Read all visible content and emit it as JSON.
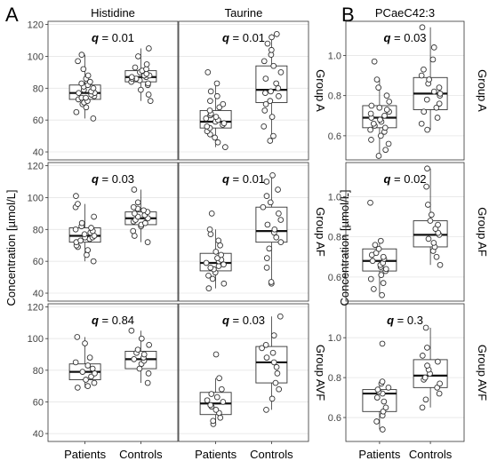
{
  "panel_labels": {
    "a": "A",
    "b": "B"
  },
  "y_axis_label": "Concentration  [µmol/L]",
  "x_categories": [
    "Patients",
    "Controls"
  ],
  "chart_data": [
    {
      "type": "box",
      "title": "Histidine",
      "ylim": [
        35,
        122
      ],
      "yticks": [
        40,
        60,
        80,
        100,
        120
      ],
      "facets": [
        {
          "group": "Group A",
          "q_label": "q",
          "q_value": "= 0.01",
          "boxes": [
            {
              "category": "Patients",
              "whisker_low": 61,
              "q1": 73,
              "median": 77,
              "q3": 82,
              "whisker_high": 101,
              "points": [
                61,
                65,
                68,
                70,
                71,
                72,
                73,
                74,
                74,
                75,
                76,
                77,
                77,
                78,
                79,
                80,
                81,
                82,
                83,
                84,
                86,
                88,
                92,
                97,
                101
              ]
            },
            {
              "category": "Controls",
              "whisker_low": 72,
              "q1": 84,
              "median": 87,
              "q3": 91,
              "whisker_high": 105,
              "points": [
                72,
                76,
                79,
                82,
                83,
                84,
                85,
                86,
                86,
                87,
                87,
                88,
                88,
                89,
                90,
                91,
                92,
                93,
                95,
                100,
                105
              ]
            }
          ]
        },
        {
          "group": "Group AF",
          "q_label": "q",
          "q_value": "= 0.03",
          "boxes": [
            {
              "category": "Patients",
              "whisker_low": 60,
              "q1": 72,
              "median": 76,
              "q3": 81,
              "whisker_high": 96,
              "points": [
                60,
                64,
                67,
                69,
                70,
                72,
                73,
                74,
                75,
                75,
                76,
                77,
                78,
                79,
                80,
                81,
                82,
                84,
                88,
                94,
                96,
                101
              ]
            },
            {
              "category": "Controls",
              "whisker_low": 72,
              "q1": 83,
              "median": 87,
              "q3": 91,
              "whisker_high": 105,
              "points": [
                72,
                76,
                79,
                82,
                83,
                84,
                85,
                86,
                87,
                87,
                88,
                89,
                90,
                91,
                92,
                93,
                94,
                97,
                105
              ]
            }
          ]
        },
        {
          "group": "Group AVF",
          "q_label": "q",
          "q_value": "= 0.84",
          "boxes": [
            {
              "category": "Patients",
              "whisker_low": 69,
              "q1": 74,
              "median": 79,
              "q3": 84,
              "whisker_high": 101,
              "points": [
                69,
                70,
                72,
                74,
                76,
                78,
                79,
                81,
                83,
                85,
                88,
                97,
                101
              ]
            },
            {
              "category": "Controls",
              "whisker_low": 72,
              "q1": 81,
              "median": 87,
              "q3": 92,
              "whisker_high": 105,
              "points": [
                72,
                78,
                81,
                84,
                86,
                87,
                88,
                90,
                91,
                93,
                96,
                100,
                105
              ]
            }
          ]
        }
      ]
    },
    {
      "type": "box",
      "title": "Taurine",
      "ylim": [
        35,
        122
      ],
      "yticks": [
        40,
        60,
        80,
        100,
        120
      ],
      "facets": [
        {
          "group": "Group A",
          "q_label": "q",
          "q_value": "= 0.01",
          "boxes": [
            {
              "category": "Patients",
              "whisker_low": 43,
              "q1": 55,
              "median": 59,
              "q3": 66,
              "whisker_high": 83,
              "points": [
                43,
                46,
                49,
                51,
                53,
                55,
                56,
                57,
                58,
                59,
                60,
                61,
                62,
                63,
                64,
                66,
                68,
                70,
                72,
                75,
                78,
                83,
                90
              ]
            },
            {
              "category": "Controls",
              "whisker_low": 47,
              "q1": 71,
              "median": 79,
              "q3": 94,
              "whisker_high": 114,
              "points": [
                47,
                50,
                56,
                62,
                66,
                70,
                72,
                75,
                77,
                78,
                80,
                83,
                86,
                90,
                94,
                97,
                101,
                104,
                108,
                112,
                114
              ]
            }
          ]
        },
        {
          "group": "Group AF",
          "q_label": "q",
          "q_value": "= 0.01",
          "boxes": [
            {
              "category": "Patients",
              "whisker_low": 43,
              "q1": 54,
              "median": 59,
              "q3": 65,
              "whisker_high": 80,
              "points": [
                43,
                46,
                49,
                51,
                53,
                55,
                56,
                57,
                58,
                59,
                60,
                61,
                62,
                64,
                66,
                70,
                73,
                77,
                80,
                90
              ]
            },
            {
              "category": "Controls",
              "whisker_low": 46,
              "q1": 72,
              "median": 79,
              "q3": 94,
              "whisker_high": 114,
              "points": [
                46,
                47,
                56,
                62,
                68,
                72,
                75,
                78,
                80,
                83,
                86,
                90,
                94,
                97,
                101,
                105,
                110,
                114
              ]
            }
          ]
        },
        {
          "group": "Group AVF",
          "q_label": "q",
          "q_value": "= 0.03",
          "boxes": [
            {
              "category": "Patients",
              "whisker_low": 46,
              "q1": 52,
              "median": 59,
              "q3": 66,
              "whisker_high": 75,
              "points": [
                46,
                48,
                50,
                53,
                55,
                57,
                58,
                60,
                61,
                63,
                65,
                68,
                75,
                90
              ]
            },
            {
              "category": "Controls",
              "whisker_low": 55,
              "q1": 72,
              "median": 85,
              "q3": 95,
              "whisker_high": 114,
              "points": [
                55,
                62,
                68,
                72,
                78,
                82,
                85,
                88,
                91,
                94,
                96,
                102,
                114
              ]
            }
          ]
        }
      ]
    },
    {
      "type": "box",
      "title": "PCaeC42:3",
      "ylim": [
        0.48,
        1.17
      ],
      "yticks": [
        0.6,
        0.8,
        1.0
      ],
      "tick_decimals": 1,
      "facets": [
        {
          "group": "Group A",
          "q_label": "q",
          "q_value": "= 0.03",
          "boxes": [
            {
              "category": "Patients",
              "whisker_low": 0.5,
              "q1": 0.64,
              "median": 0.69,
              "q3": 0.75,
              "whisker_high": 0.88,
              "points": [
                0.5,
                0.53,
                0.56,
                0.58,
                0.6,
                0.62,
                0.63,
                0.64,
                0.65,
                0.66,
                0.67,
                0.68,
                0.69,
                0.7,
                0.71,
                0.72,
                0.73,
                0.74,
                0.75,
                0.77,
                0.8,
                0.84,
                0.88,
                0.97
              ]
            },
            {
              "category": "Controls",
              "whisker_low": 0.63,
              "q1": 0.73,
              "median": 0.81,
              "q3": 0.89,
              "whisker_high": 1.14,
              "points": [
                0.63,
                0.66,
                0.69,
                0.72,
                0.74,
                0.76,
                0.78,
                0.8,
                0.81,
                0.82,
                0.84,
                0.86,
                0.88,
                0.9,
                0.93,
                0.98,
                1.04,
                1.14
              ]
            }
          ]
        },
        {
          "group": "Group AF",
          "q_label": "q",
          "q_value": "= 0.02",
          "boxes": [
            {
              "category": "Patients",
              "whisker_low": 0.51,
              "q1": 0.63,
              "median": 0.68,
              "q3": 0.74,
              "whisker_high": 0.79,
              "points": [
                0.51,
                0.54,
                0.57,
                0.59,
                0.61,
                0.63,
                0.64,
                0.65,
                0.66,
                0.67,
                0.68,
                0.69,
                0.7,
                0.71,
                0.72,
                0.74,
                0.76,
                0.78,
                0.97
              ]
            },
            {
              "category": "Controls",
              "whisker_low": 0.66,
              "q1": 0.75,
              "median": 0.81,
              "q3": 0.88,
              "whisker_high": 1.14,
              "points": [
                0.66,
                0.7,
                0.73,
                0.75,
                0.77,
                0.79,
                0.81,
                0.82,
                0.84,
                0.86,
                0.88,
                0.91,
                0.96,
                1.05,
                1.14
              ]
            }
          ]
        },
        {
          "group": "Group AVF",
          "q_label": "q",
          "q_value": "= 0.3",
          "boxes": [
            {
              "category": "Patients",
              "whisker_low": 0.54,
              "q1": 0.63,
              "median": 0.72,
              "q3": 0.74,
              "whisker_high": 0.78,
              "points": [
                0.54,
                0.58,
                0.61,
                0.63,
                0.65,
                0.68,
                0.7,
                0.72,
                0.73,
                0.74,
                0.75,
                0.77,
                0.78,
                0.97
              ]
            },
            {
              "category": "Controls",
              "whisker_low": 0.65,
              "q1": 0.75,
              "median": 0.81,
              "q3": 0.89,
              "whisker_high": 1.05,
              "points": [
                0.65,
                0.69,
                0.72,
                0.75,
                0.77,
                0.79,
                0.8,
                0.82,
                0.84,
                0.86,
                0.88,
                0.91,
                0.95,
                1.05
              ]
            }
          ]
        }
      ]
    }
  ]
}
